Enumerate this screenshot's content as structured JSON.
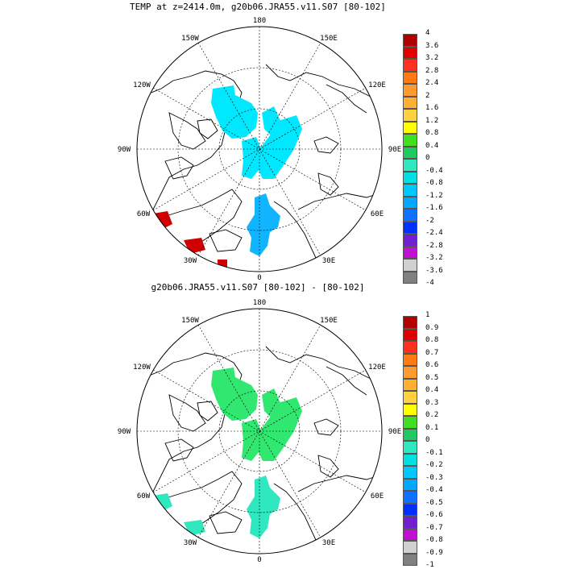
{
  "panels": [
    {
      "title": "TEMP at z=2414.0m, g20b06.JRA55.v11.S07 [80-102]",
      "longitude_labels": [
        "180",
        "150E",
        "120E",
        "90E",
        "60E",
        "30E",
        "0",
        "30W",
        "60W",
        "90W",
        "120W",
        "150W"
      ],
      "colorbar": {
        "labels": [
          "4",
          "3.6",
          "3.2",
          "2.8",
          "2.4",
          "2",
          "1.6",
          "1.2",
          "0.8",
          "0.4",
          "0",
          "-0.4",
          "-0.8",
          "-1.2",
          "-1.6",
          "-2",
          "-2.4",
          "-2.8",
          "-3.2",
          "-3.6",
          "-4"
        ],
        "colors": [
          "#b00000",
          "#e00000",
          "#ff3020",
          "#ff7a10",
          "#ff9a30",
          "#ffb030",
          "#ffd040",
          "#ffff00",
          "#40e020",
          "#20c860",
          "#30e8c0",
          "#00e0e0",
          "#00c8ff",
          "#00a8ff",
          "#1070ff",
          "#0030ff",
          "#7020d0",
          "#c010d0",
          "#d0d0d0",
          "#808080"
        ]
      }
    },
    {
      "title": "g20b06.JRA55.v11.S07 [80-102] -  [80-102]",
      "longitude_labels": [
        "180",
        "150E",
        "120E",
        "90E",
        "60E",
        "30E",
        "0",
        "30W",
        "60W",
        "90W",
        "120W",
        "150W"
      ],
      "colorbar": {
        "labels": [
          "1",
          "0.9",
          "0.8",
          "0.7",
          "0.6",
          "0.5",
          "0.4",
          "0.3",
          "0.2",
          "0.1",
          "0",
          "-0.1",
          "-0.2",
          "-0.3",
          "-0.4",
          "-0.5",
          "-0.6",
          "-0.7",
          "-0.8",
          "-0.9",
          "-1"
        ],
        "colors": [
          "#b00000",
          "#e00000",
          "#ff3020",
          "#ff7a10",
          "#ff9a30",
          "#ffb030",
          "#ffd040",
          "#ffff00",
          "#40e020",
          "#20c860",
          "#30e8c0",
          "#00e0e0",
          "#00c8ff",
          "#00a8ff",
          "#1070ff",
          "#0030ff",
          "#7020d0",
          "#c010d0",
          "#d0d0d0",
          "#808080"
        ]
      }
    }
  ]
}
